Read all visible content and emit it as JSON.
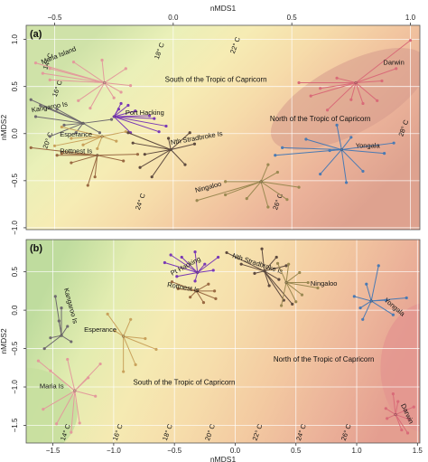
{
  "chart_data": [
    {
      "panel": "(a)",
      "type": "scatter",
      "xlabel": "nMDS1",
      "ylabel": "nMDS2",
      "xlim": [
        -0.62,
        1.04
      ],
      "ylim": [
        -1.02,
        1.15
      ],
      "x_ticks": [
        -0.5,
        0.0,
        0.5,
        1.0
      ],
      "x_tick_labels": [
        "−0.5",
        "0.0",
        "0.5",
        "1.0"
      ],
      "y_ticks": [
        1.0,
        0.5,
        0.0,
        -0.5,
        -1.0
      ],
      "y_tick_labels": [
        "1.0",
        "0.5",
        "0.0",
        "−0.5",
        "−1.0"
      ],
      "x_axis_position": "top",
      "colors": {
        "region_south": "#f3e7b0",
        "region_north": "#eab199",
        "grid": "#ffffff"
      },
      "regions": [
        {
          "label": "South of the Tropic of Capricorn",
          "x": 0.18,
          "y": 0.55
        },
        {
          "label": "North of the Tropic of Capricorn",
          "x": 0.62,
          "y": 0.13
        }
      ],
      "isotherms": [
        {
          "label": "14° C",
          "x": -0.52,
          "y": 0.76
        },
        {
          "label": "16° C",
          "x": -0.48,
          "y": 0.47
        },
        {
          "label": "18° C",
          "x": -0.05,
          "y": 0.87
        },
        {
          "label": "20° C",
          "x": -0.52,
          "y": -0.08
        },
        {
          "label": "22° C",
          "x": 0.27,
          "y": 0.93
        },
        {
          "label": "24° C",
          "x": -0.13,
          "y": -0.73
        },
        {
          "label": "26° C",
          "x": 0.45,
          "y": -0.73
        },
        {
          "label": "28° C",
          "x": 0.98,
          "y": 0.05
        }
      ],
      "sites": [
        {
          "name": "Maria Island",
          "color": "#e39a9c",
          "centroid": [
            -0.29,
            0.54
          ],
          "label_pos": [
            -0.48,
            0.81
          ],
          "points": [
            [
              -0.58,
              0.75
            ],
            [
              -0.55,
              0.64
            ],
            [
              -0.52,
              0.57
            ],
            [
              -0.42,
              0.76
            ],
            [
              -0.3,
              0.78
            ],
            [
              -0.2,
              0.69
            ],
            [
              -0.4,
              0.35
            ],
            [
              -0.35,
              0.27
            ],
            [
              -0.25,
              0.38
            ],
            [
              -0.18,
              0.51
            ],
            [
              -0.52,
              0.69
            ],
            [
              -0.22,
              0.44
            ]
          ]
        },
        {
          "name": "Kangaroo Is",
          "color": "#6f6a6f",
          "centroid": [
            -0.38,
            0.11
          ],
          "label_pos": [
            -0.52,
            0.26
          ],
          "points": [
            [
              -0.6,
              0.36
            ],
            [
              -0.56,
              0.3
            ],
            [
              -0.49,
              0.26
            ],
            [
              -0.46,
              0.09
            ],
            [
              -0.41,
              0.01
            ],
            [
              -0.31,
              0.01
            ],
            [
              -0.26,
              0.15
            ],
            [
              -0.58,
              0.18
            ],
            [
              -0.52,
              -0.03
            ]
          ]
        },
        {
          "name": "Esperance",
          "color": "#c9a25c",
          "centroid": [
            -0.3,
            -0.03
          ],
          "label_pos": [
            -0.41,
            -0.03
          ],
          "points": [
            [
              -0.47,
              0.07
            ],
            [
              -0.43,
              -0.05
            ],
            [
              -0.38,
              -0.12
            ],
            [
              -0.32,
              -0.16
            ],
            [
              -0.24,
              -0.08
            ],
            [
              -0.2,
              0.02
            ],
            [
              -0.5,
              -0.13
            ]
          ]
        },
        {
          "name": "Port Hacking",
          "color": "#7a39b5",
          "centroid": [
            -0.25,
            0.18
          ],
          "label_pos": [
            -0.12,
            0.2
          ],
          "points": [
            [
              -0.22,
              0.32
            ],
            [
              -0.16,
              0.24
            ],
            [
              -0.1,
              0.19
            ],
            [
              -0.03,
              0.08
            ],
            [
              -0.06,
              0.02
            ],
            [
              -0.18,
              0.01
            ],
            [
              -0.23,
              0.26
            ],
            [
              -0.19,
              0.3
            ],
            [
              -0.08,
              0.16
            ]
          ]
        },
        {
          "name": "Rottnest Is",
          "color": "#9a6a43",
          "centroid": [
            -0.32,
            -0.23
          ],
          "label_pos": [
            -0.41,
            -0.21
          ],
          "points": [
            [
              -0.6,
              -0.15
            ],
            [
              -0.49,
              -0.23
            ],
            [
              -0.43,
              -0.31
            ],
            [
              -0.36,
              -0.55
            ],
            [
              -0.33,
              -0.46
            ],
            [
              -0.21,
              -0.29
            ],
            [
              -0.15,
              -0.22
            ],
            [
              -0.47,
              -0.21
            ]
          ]
        },
        {
          "name": "Nth Stradbroke Is",
          "color": "#5f4b3f",
          "centroid": [
            -0.01,
            -0.17
          ],
          "label_pos": [
            0.1,
            -0.07
          ],
          "points": [
            [
              -0.19,
              0.01
            ],
            [
              -0.17,
              -0.1
            ],
            [
              -0.14,
              -0.36
            ],
            [
              -0.09,
              -0.46
            ],
            [
              0.05,
              -0.33
            ],
            [
              0.09,
              -0.11
            ],
            [
              0.07,
              0.01
            ],
            [
              -0.02,
              -0.05
            ],
            [
              -0.12,
              -0.22
            ]
          ]
        },
        {
          "name": "Ningaloo",
          "color": "#9b8952",
          "centroid": [
            0.37,
            -0.51
          ],
          "label_pos": [
            0.15,
            -0.59
          ],
          "points": [
            [
              0.1,
              -0.71
            ],
            [
              0.22,
              -0.65
            ],
            [
              0.31,
              -0.69
            ],
            [
              0.4,
              -0.33
            ],
            [
              0.44,
              -0.41
            ],
            [
              0.53,
              -0.57
            ],
            [
              0.48,
              -0.7
            ],
            [
              0.22,
              -0.51
            ],
            [
              0.4,
              -0.78
            ]
          ]
        },
        {
          "name": "Darwin",
          "color": "#d96b78",
          "centroid": [
            0.77,
            0.54
          ],
          "label_pos": [
            0.93,
            0.73
          ],
          "points": [
            [
              0.53,
              0.54
            ],
            [
              0.62,
              0.48
            ],
            [
              0.69,
              0.59
            ],
            [
              0.75,
              0.36
            ],
            [
              0.8,
              0.32
            ],
            [
              0.86,
              0.35
            ],
            [
              0.88,
              0.56
            ],
            [
              0.94,
              0.69
            ],
            [
              1.0,
              0.99
            ],
            [
              0.65,
              0.25
            ],
            [
              0.58,
              0.4
            ]
          ]
        },
        {
          "name": "Yongala",
          "color": "#4a7ab3",
          "centroid": [
            0.71,
            -0.17
          ],
          "label_pos": [
            0.82,
            -0.15
          ],
          "points": [
            [
              0.43,
              -0.23
            ],
            [
              0.46,
              -0.15
            ],
            [
              0.56,
              -0.06
            ],
            [
              0.62,
              -0.43
            ],
            [
              0.69,
              0.09
            ],
            [
              0.75,
              -0.04
            ],
            [
              0.8,
              -0.4
            ],
            [
              0.89,
              -0.21
            ],
            [
              0.93,
              -0.1
            ],
            [
              0.73,
              -0.52
            ],
            [
              0.66,
              -0.18
            ]
          ]
        }
      ]
    },
    {
      "panel": "(b)",
      "type": "scatter",
      "xlabel": "nMDS1",
      "ylabel": "nMDS2",
      "xlim": [
        -1.72,
        1.52
      ],
      "ylim": [
        -1.73,
        0.92
      ],
      "x_ticks": [
        -1.5,
        -1.0,
        -0.5,
        0.0,
        0.5,
        1.0,
        1.5
      ],
      "x_tick_labels": [
        "−1.5",
        "−1.0",
        "−0.5",
        "0.0",
        "0.5",
        "1.0",
        "1.5"
      ],
      "y_ticks": [
        0.5,
        0.0,
        -0.5,
        -1.0,
        -1.5
      ],
      "y_tick_labels": [
        "0.5",
        "0.0",
        "−0.5",
        "−1.0",
        "−1.5"
      ],
      "x_axis_position": "bottom",
      "regions": [
        {
          "label": "South of the Tropic of Capricorn",
          "x": -0.42,
          "y": -0.97
        },
        {
          "label": "North of the Tropic of Capricorn",
          "x": 0.73,
          "y": -0.67
        }
      ],
      "isotherms": [
        {
          "label": "14° C",
          "x": -1.38,
          "y": -1.6
        },
        {
          "label": "16° C",
          "x": -0.95,
          "y": -1.6
        },
        {
          "label": "18° C",
          "x": -0.54,
          "y": -1.6
        },
        {
          "label": "20° C",
          "x": -0.19,
          "y": -1.6
        },
        {
          "label": "22° C",
          "x": 0.2,
          "y": -1.6
        },
        {
          "label": "24° C",
          "x": 0.56,
          "y": -1.6
        },
        {
          "label": "26° C",
          "x": 0.93,
          "y": -1.6
        }
      ],
      "sites": [
        {
          "name": "Maria Is",
          "color": "#e39a9c",
          "centroid": [
            -1.32,
            -1.05
          ],
          "label_pos": [
            -1.51,
            -1.02
          ],
          "points": [
            [
              -1.62,
              -0.66
            ],
            [
              -1.58,
              -1.29
            ],
            [
              -1.52,
              -0.79
            ],
            [
              -1.47,
              -1.48
            ],
            [
              -1.35,
              -1.59
            ],
            [
              -1.28,
              -1.47
            ],
            [
              -1.21,
              -0.88
            ],
            [
              -1.15,
              -1.12
            ],
            [
              -1.38,
              -0.64
            ],
            [
              -1.11,
              -0.7
            ]
          ]
        },
        {
          "name": "Kangaroo Is",
          "color": "#6f6a6f",
          "centroid": [
            -1.43,
            -0.33
          ],
          "label_pos": [
            -1.37,
            0.05
          ],
          "points": [
            [
              -1.48,
              0.18
            ],
            [
              -1.43,
              0.03
            ],
            [
              -1.45,
              -0.14
            ],
            [
              -1.52,
              -0.36
            ],
            [
              -1.57,
              -0.5
            ],
            [
              -1.38,
              -0.21
            ],
            [
              -1.35,
              -0.41
            ]
          ]
        },
        {
          "name": "Esperance",
          "color": "#c9a25c",
          "centroid": [
            -0.92,
            -0.34
          ],
          "label_pos": [
            -1.11,
            -0.28
          ],
          "points": [
            [
              -1.05,
              -0.05
            ],
            [
              -0.86,
              -0.12
            ],
            [
              -0.74,
              -0.37
            ],
            [
              -0.65,
              -0.51
            ],
            [
              -0.82,
              -0.71
            ],
            [
              -0.92,
              -0.8
            ],
            [
              -0.99,
              -0.27
            ]
          ]
        },
        {
          "name": "Pt Hacking",
          "color": "#7a39b5",
          "centroid": [
            -0.31,
            0.49
          ],
          "label_pos": [
            -0.4,
            0.55
          ],
          "points": [
            [
              -0.53,
              0.72
            ],
            [
              -0.44,
              0.69
            ],
            [
              -0.33,
              0.76
            ],
            [
              -0.25,
              0.6
            ],
            [
              -0.18,
              0.52
            ],
            [
              -0.33,
              0.38
            ],
            [
              -0.48,
              0.44
            ],
            [
              -0.58,
              0.62
            ],
            [
              -0.14,
              0.69
            ]
          ]
        },
        {
          "name": "Rottnest Is",
          "color": "#9a6a43",
          "centroid": [
            -0.32,
            0.25
          ],
          "label_pos": [
            -0.43,
            0.27
          ],
          "points": [
            [
              -0.52,
              0.37
            ],
            [
              -0.47,
              0.28
            ],
            [
              -0.37,
              0.17
            ],
            [
              -0.26,
              0.1
            ],
            [
              -0.16,
              0.15
            ],
            [
              -0.17,
              0.25
            ],
            [
              -0.22,
              0.34
            ]
          ]
        },
        {
          "name": "Nth Stradbroke Is",
          "color": "#5f4b3f",
          "centroid": [
            0.24,
            0.51
          ],
          "label_pos": [
            0.18,
            0.58
          ],
          "points": [
            [
              -0.07,
              0.75
            ],
            [
              0.05,
              0.6
            ],
            [
              0.16,
              0.48
            ],
            [
              0.28,
              0.32
            ],
            [
              0.36,
              0.4
            ],
            [
              0.42,
              0.58
            ],
            [
              0.34,
              0.69
            ],
            [
              0.22,
              0.8
            ],
            [
              0.47,
              0.08
            ],
            [
              0.4,
              0.13
            ]
          ]
        },
        {
          "name": "Ningaloo",
          "color": "#9b8952",
          "centroid": [
            0.42,
            0.36
          ],
          "label_pos": [
            0.73,
            0.32
          ],
          "points": [
            [
              0.35,
              0.61
            ],
            [
              0.44,
              0.6
            ],
            [
              0.53,
              0.49
            ],
            [
              0.6,
              0.36
            ],
            [
              0.55,
              0.2
            ],
            [
              0.5,
              0.11
            ],
            [
              0.38,
              0.06
            ],
            [
              0.68,
              0.29
            ]
          ]
        },
        {
          "name": "Yongala",
          "color": "#4a7ab3",
          "centroid": [
            1.12,
            0.12
          ],
          "label_pos": [
            1.3,
            0.02
          ],
          "points": [
            [
              0.98,
              0.18
            ],
            [
              1.03,
              0.03
            ],
            [
              1.08,
              0.34
            ],
            [
              1.18,
              0.58
            ],
            [
              1.24,
              0.13
            ],
            [
              1.3,
              -0.06
            ],
            [
              1.41,
              0.16
            ],
            [
              1.05,
              -0.12
            ]
          ]
        },
        {
          "name": "Darwin",
          "color": "#d96b78",
          "centroid": [
            1.32,
            -1.36
          ],
          "label_pos": [
            1.4,
            -1.36
          ],
          "points": [
            [
              1.24,
              -1.28
            ],
            [
              1.25,
              -1.41
            ],
            [
              1.3,
              -1.09
            ],
            [
              1.34,
              -1.19
            ],
            [
              1.37,
              -1.56
            ],
            [
              1.43,
              -1.42
            ],
            [
              1.47,
              -1.26
            ],
            [
              1.42,
              -1.6
            ]
          ]
        }
      ]
    }
  ]
}
